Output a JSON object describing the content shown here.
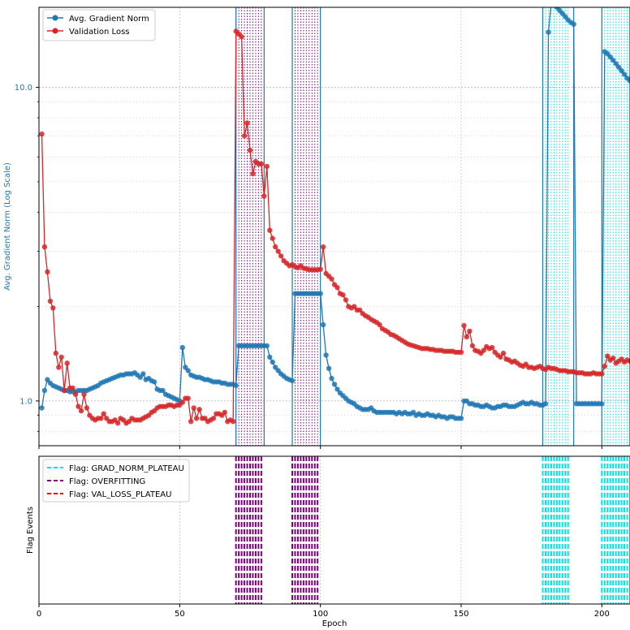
{
  "chart_data": [
    {
      "type": "line",
      "ylabel": "Avg. Gradient Norm (Log Scale)",
      "yscale": "log",
      "yticks": [
        1.0,
        10.0
      ],
      "ytick_labels": [
        "1.0",
        "10.0"
      ],
      "xlim": [
        0,
        210
      ],
      "ylim": [
        0.72,
        18.0
      ],
      "grid": true,
      "legend_position": "upper left",
      "colors": {
        "grad": "#1f77b4",
        "val": "#d62728",
        "flag_overfit": "#800080",
        "flag_grad_plateau": "#00e5e5",
        "flag_val_plateau": "#ff0000"
      },
      "series": [
        {
          "name": "Avg. Gradient Norm",
          "color": "#1f77b4",
          "x": [
            1,
            2,
            3,
            4,
            5,
            6,
            7,
            8,
            9,
            10,
            11,
            12,
            13,
            14,
            15,
            16,
            17,
            18,
            19,
            20,
            21,
            22,
            23,
            24,
            25,
            26,
            27,
            28,
            29,
            30,
            31,
            32,
            33,
            34,
            35,
            36,
            37,
            38,
            39,
            40,
            41,
            42,
            43,
            44,
            45,
            46,
            47,
            48,
            49,
            50,
            51,
            52,
            53,
            54,
            55,
            56,
            57,
            58,
            59,
            60,
            61,
            62,
            63,
            64,
            65,
            66,
            67,
            68,
            69,
            70,
            71,
            72,
            73,
            74,
            75,
            76,
            77,
            78,
            79,
            80,
            81,
            82,
            83,
            84,
            85,
            86,
            87,
            88,
            89,
            90,
            91,
            92,
            93,
            94,
            95,
            96,
            97,
            98,
            99,
            100,
            101,
            102,
            103,
            104,
            105,
            106,
            107,
            108,
            109,
            110,
            111,
            112,
            113,
            114,
            115,
            116,
            117,
            118,
            119,
            120,
            121,
            122,
            123,
            124,
            125,
            126,
            127,
            128,
            129,
            130,
            131,
            132,
            133,
            134,
            135,
            136,
            137,
            138,
            139,
            140,
            141,
            142,
            143,
            144,
            145,
            146,
            147,
            148,
            149,
            150,
            151,
            152,
            153,
            154,
            155,
            156,
            157,
            158,
            159,
            160,
            161,
            162,
            163,
            164,
            165,
            166,
            167,
            168,
            169,
            170,
            171,
            172,
            173,
            174,
            175,
            176,
            177,
            178,
            179,
            180,
            181,
            182,
            183,
            184,
            185,
            186,
            187,
            188,
            189,
            190,
            191,
            192,
            193,
            194,
            195,
            196,
            197,
            198,
            199,
            200,
            201,
            202,
            203,
            204,
            205,
            206,
            207,
            208,
            209,
            210
          ],
          "y": [
            0.95,
            1.08,
            1.17,
            1.14,
            1.12,
            1.11,
            1.1,
            1.09,
            1.08,
            1.08,
            1.07,
            1.07,
            1.07,
            1.08,
            1.08,
            1.08,
            1.08,
            1.09,
            1.1,
            1.11,
            1.12,
            1.14,
            1.15,
            1.16,
            1.17,
            1.18,
            1.19,
            1.2,
            1.21,
            1.21,
            1.22,
            1.22,
            1.22,
            1.23,
            1.21,
            1.19,
            1.22,
            1.17,
            1.18,
            1.16,
            1.15,
            1.09,
            1.08,
            1.08,
            1.05,
            1.04,
            1.03,
            1.02,
            1.01,
            1.0,
            1.48,
            1.28,
            1.25,
            1.21,
            1.2,
            1.19,
            1.19,
            1.18,
            1.17,
            1.17,
            1.16,
            1.15,
            1.15,
            1.15,
            1.14,
            1.14,
            1.13,
            1.13,
            1.13,
            1.12,
            1.5,
            1.5,
            1.5,
            1.5,
            1.5,
            1.5,
            1.5,
            1.5,
            1.5,
            1.5,
            1.5,
            1.38,
            1.33,
            1.28,
            1.25,
            1.22,
            1.2,
            1.18,
            1.17,
            1.16,
            2.2,
            2.2,
            2.2,
            2.2,
            2.2,
            2.2,
            2.2,
            2.2,
            2.2,
            2.2,
            1.75,
            1.4,
            1.27,
            1.18,
            1.13,
            1.09,
            1.06,
            1.04,
            1.02,
            1.0,
            0.99,
            0.98,
            0.96,
            0.95,
            0.94,
            0.94,
            0.94,
            0.95,
            0.93,
            0.92,
            0.92,
            0.92,
            0.92,
            0.92,
            0.92,
            0.92,
            0.91,
            0.92,
            0.91,
            0.92,
            0.91,
            0.91,
            0.92,
            0.9,
            0.91,
            0.9,
            0.9,
            0.91,
            0.9,
            0.9,
            0.89,
            0.9,
            0.89,
            0.89,
            0.88,
            0.89,
            0.89,
            0.88,
            0.88,
            0.88,
            1.0,
            1.0,
            0.98,
            0.98,
            0.97,
            0.97,
            0.96,
            0.96,
            0.97,
            0.96,
            0.95,
            0.95,
            0.96,
            0.96,
            0.97,
            0.97,
            0.96,
            0.96,
            0.96,
            0.97,
            0.98,
            0.99,
            0.98,
            0.98,
            0.99,
            0.98,
            0.98,
            0.97,
            0.97,
            0.98,
            15.0,
            18.5,
            18.3,
            18.0,
            17.6,
            17.2,
            16.8,
            16.4,
            16.1,
            15.9,
            0.98,
            0.98,
            0.98,
            0.98,
            0.98,
            0.98,
            0.98,
            0.98,
            0.98,
            0.98,
            13.0,
            12.8,
            12.5,
            12.2,
            11.9,
            11.6,
            11.3,
            11.0,
            10.7,
            10.5
          ]
        },
        {
          "name": "Validation Loss",
          "color": "#d62728",
          "x": [
            1,
            2,
            3,
            4,
            5,
            6,
            7,
            8,
            9,
            10,
            11,
            12,
            13,
            14,
            15,
            16,
            17,
            18,
            19,
            20,
            21,
            22,
            23,
            24,
            25,
            26,
            27,
            28,
            29,
            30,
            31,
            32,
            33,
            34,
            35,
            36,
            37,
            38,
            39,
            40,
            41,
            42,
            43,
            44,
            45,
            46,
            47,
            48,
            49,
            50,
            51,
            52,
            53,
            54,
            55,
            56,
            57,
            58,
            59,
            60,
            61,
            62,
            63,
            64,
            65,
            66,
            67,
            68,
            69,
            70,
            71,
            72,
            73,
            74,
            75,
            76,
            77,
            78,
            79,
            80,
            81,
            82,
            83,
            84,
            85,
            86,
            87,
            88,
            89,
            90,
            91,
            92,
            93,
            94,
            95,
            96,
            97,
            98,
            99,
            100,
            101,
            102,
            103,
            104,
            105,
            106,
            107,
            108,
            109,
            110,
            111,
            112,
            113,
            114,
            115,
            116,
            117,
            118,
            119,
            120,
            121,
            122,
            123,
            124,
            125,
            126,
            127,
            128,
            129,
            130,
            131,
            132,
            133,
            134,
            135,
            136,
            137,
            138,
            139,
            140,
            141,
            142,
            143,
            144,
            145,
            146,
            147,
            148,
            149,
            150,
            151,
            152,
            153,
            154,
            155,
            156,
            157,
            158,
            159,
            160,
            161,
            162,
            163,
            164,
            165,
            166,
            167,
            168,
            169,
            170,
            171,
            172,
            173,
            174,
            175,
            176,
            177,
            178,
            179,
            180,
            181,
            182,
            183,
            184,
            185,
            186,
            187,
            188,
            189,
            190,
            191,
            192,
            193,
            194,
            195,
            196,
            197,
            198,
            199,
            200,
            201,
            202,
            203,
            204,
            205,
            206,
            207,
            208,
            209,
            210
          ],
          "y": [
            7.1,
            3.1,
            2.58,
            2.08,
            1.98,
            1.42,
            1.28,
            1.38,
            1.08,
            1.32,
            1.1,
            1.1,
            1.05,
            0.96,
            0.93,
            1.05,
            0.95,
            0.9,
            0.88,
            0.87,
            0.88,
            0.88,
            0.91,
            0.88,
            0.86,
            0.86,
            0.87,
            0.85,
            0.88,
            0.87,
            0.85,
            0.86,
            0.88,
            0.87,
            0.87,
            0.87,
            0.88,
            0.89,
            0.9,
            0.92,
            0.93,
            0.95,
            0.96,
            0.96,
            0.96,
            0.97,
            0.97,
            0.96,
            0.97,
            0.97,
            0.99,
            1.02,
            1.02,
            0.86,
            0.95,
            0.88,
            0.94,
            0.88,
            0.88,
            0.86,
            0.87,
            0.88,
            0.91,
            0.91,
            0.9,
            0.92,
            0.86,
            0.87,
            0.86,
            15.1,
            14.8,
            14.5,
            7.0,
            7.7,
            6.3,
            5.3,
            5.8,
            5.7,
            5.7,
            4.5,
            5.6,
            3.5,
            3.3,
            3.1,
            3.0,
            2.9,
            2.8,
            2.75,
            2.7,
            2.72,
            2.68,
            2.66,
            2.7,
            2.65,
            2.64,
            2.62,
            2.62,
            2.62,
            2.62,
            2.63,
            3.1,
            2.55,
            2.5,
            2.45,
            2.35,
            2.3,
            2.2,
            2.18,
            2.1,
            2.0,
            1.98,
            2.0,
            1.95,
            1.95,
            1.9,
            1.87,
            1.85,
            1.82,
            1.8,
            1.78,
            1.75,
            1.7,
            1.68,
            1.66,
            1.63,
            1.62,
            1.6,
            1.58,
            1.56,
            1.54,
            1.52,
            1.51,
            1.5,
            1.49,
            1.48,
            1.47,
            1.47,
            1.47,
            1.46,
            1.46,
            1.45,
            1.45,
            1.45,
            1.44,
            1.44,
            1.44,
            1.44,
            1.43,
            1.43,
            1.43,
            1.74,
            1.6,
            1.67,
            1.5,
            1.45,
            1.44,
            1.42,
            1.45,
            1.49,
            1.47,
            1.48,
            1.43,
            1.4,
            1.38,
            1.42,
            1.36,
            1.35,
            1.33,
            1.34,
            1.32,
            1.3,
            1.29,
            1.31,
            1.28,
            1.28,
            1.27,
            1.28,
            1.29,
            1.27,
            1.26,
            1.28,
            1.27,
            1.27,
            1.26,
            1.25,
            1.25,
            1.25,
            1.24,
            1.24,
            1.24,
            1.23,
            1.23,
            1.23,
            1.22,
            1.22,
            1.22,
            1.23,
            1.22,
            1.22,
            1.22,
            1.29,
            1.39,
            1.35,
            1.37,
            1.32,
            1.34,
            1.36,
            1.33,
            1.35,
            1.34
          ]
        }
      ],
      "overfitting_flags": [
        70,
        71,
        72,
        73,
        74,
        75,
        76,
        77,
        78,
        79,
        90,
        91,
        92,
        93,
        94,
        95,
        96,
        97,
        98,
        99
      ],
      "grad_norm_plateau_flags": [
        179,
        180,
        181,
        182,
        183,
        184,
        185,
        186,
        187,
        188,
        200,
        201,
        202,
        203,
        204,
        205,
        206,
        207,
        208,
        209
      ],
      "boundary_lines": [
        {
          "x": 70,
          "color": "#1f77b4"
        },
        {
          "x": 80,
          "color": "#1f77b4"
        },
        {
          "x": 90,
          "color": "#1f77b4"
        },
        {
          "x": 100,
          "color": "#1f77b4"
        },
        {
          "x": 179,
          "color": "#1f77b4"
        },
        {
          "x": 190,
          "color": "#1f77b4"
        },
        {
          "x": 200,
          "color": "#1f77b4"
        }
      ]
    },
    {
      "type": "event",
      "ylabel": "Flag Events",
      "xlabel": "Epoch",
      "xlim": [
        0,
        210
      ],
      "xticks": [
        0,
        50,
        100,
        150,
        200
      ],
      "xtick_labels": [
        "0",
        "50",
        "100",
        "150",
        "200"
      ],
      "grid": true,
      "legend_position": "upper left",
      "legend": [
        {
          "label": "Flag: GRAD_NORM_PLATEAU",
          "color": "#00e5e5"
        },
        {
          "label": "Flag: OVERFITTING",
          "color": "#800080"
        },
        {
          "label": "Flag: VAL_LOSS_PLATEAU",
          "color": "#ff0000"
        }
      ]
    }
  ]
}
